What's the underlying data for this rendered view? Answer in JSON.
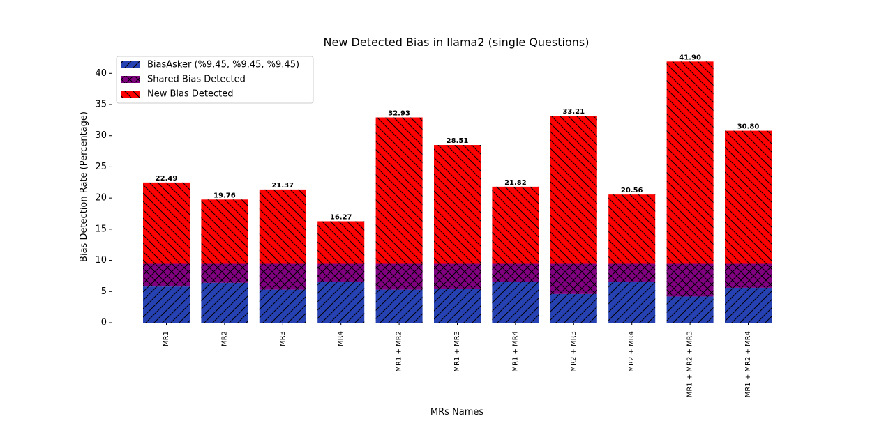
{
  "chart_data": {
    "type": "bar",
    "stacked": true,
    "title": "New Detected Bias in llama2 (single Questions)",
    "xlabel": "MRs Names",
    "ylabel": "Bias Detection Rate (Percentage)",
    "ylim": [
      0,
      43.5
    ],
    "yticks": [
      0,
      5,
      10,
      15,
      20,
      25,
      30,
      35,
      40
    ],
    "ytick_labels": [
      "0",
      "5",
      "10",
      "15",
      "20",
      "25",
      "30",
      "35",
      "40"
    ],
    "grid": false,
    "legend_position": "upper-left",
    "categories": [
      "MR1",
      "MR2",
      "MR3",
      "MR4",
      "MR1 + MR2",
      "MR1 + MR3",
      "MR1 + MR4",
      "MR2 + MR3",
      "MR2 + MR4",
      "MR1 + MR2 + MR3",
      "MR1 + MR2 + MR4"
    ],
    "series": [
      {
        "name": "BiasAsker (%9.45, %9.45, %9.45)",
        "color": "#2541b2",
        "hatch": "forward-diagonal",
        "values": [
          5.8,
          6.4,
          5.3,
          6.6,
          5.3,
          5.4,
          6.5,
          4.6,
          6.6,
          4.2,
          5.6
        ]
      },
      {
        "name": "Shared Bias Detected",
        "color": "#800080",
        "hatch": "crosshatch",
        "values": [
          3.65,
          3.05,
          4.15,
          2.85,
          4.15,
          4.05,
          2.95,
          4.85,
          2.85,
          5.25,
          3.85
        ]
      },
      {
        "name": "New Bias Detected",
        "color": "#ff0000",
        "hatch": "back-diagonal",
        "values": [
          13.04,
          10.31,
          11.92,
          6.82,
          23.48,
          19.06,
          12.37,
          23.76,
          11.11,
          32.45,
          21.35
        ]
      }
    ],
    "totals": [
      22.49,
      19.76,
      21.37,
      16.27,
      32.93,
      28.51,
      21.82,
      33.21,
      20.56,
      41.9,
      30.8
    ],
    "total_labels": [
      "22.49",
      "19.76",
      "21.37",
      "16.27",
      "32.93",
      "28.51",
      "21.82",
      "33.21",
      "20.56",
      "41.90",
      "30.80"
    ]
  }
}
